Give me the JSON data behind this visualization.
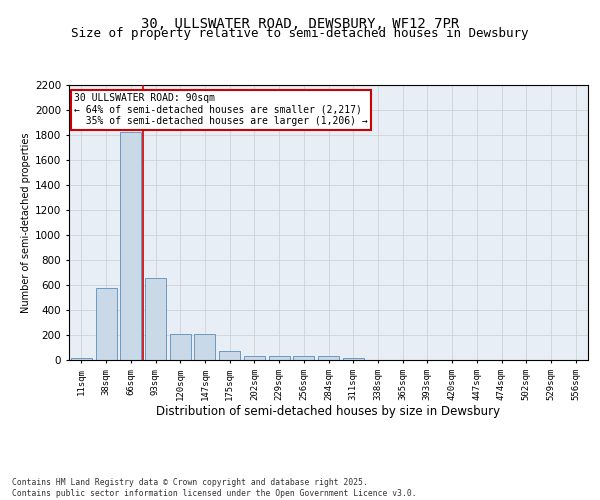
{
  "title1": "30, ULLSWATER ROAD, DEWSBURY, WF12 7PR",
  "title2": "Size of property relative to semi-detached houses in Dewsbury",
  "xlabel": "Distribution of semi-detached houses by size in Dewsbury",
  "ylabel": "Number of semi-detached properties",
  "categories": [
    "11sqm",
    "38sqm",
    "66sqm",
    "93sqm",
    "120sqm",
    "147sqm",
    "175sqm",
    "202sqm",
    "229sqm",
    "256sqm",
    "284sqm",
    "311sqm",
    "338sqm",
    "365sqm",
    "393sqm",
    "420sqm",
    "447sqm",
    "474sqm",
    "502sqm",
    "529sqm",
    "556sqm"
  ],
  "values": [
    20,
    580,
    1820,
    660,
    210,
    210,
    70,
    35,
    30,
    30,
    30,
    15,
    0,
    0,
    0,
    0,
    0,
    0,
    0,
    0,
    0
  ],
  "bar_color": "#c9d9e8",
  "bar_edge_color": "#5b8db8",
  "grid_color": "#cccccc",
  "vline_color": "#cc0000",
  "annotation_line1": "30 ULLSWATER ROAD: 90sqm",
  "annotation_line2": "← 64% of semi-detached houses are smaller (2,217)",
  "annotation_line3": "  35% of semi-detached houses are larger (1,206) →",
  "annotation_box_color": "#cc0000",
  "ylim": [
    0,
    2200
  ],
  "yticks": [
    0,
    200,
    400,
    600,
    800,
    1000,
    1200,
    1400,
    1600,
    1800,
    2000,
    2200
  ],
  "footer": "Contains HM Land Registry data © Crown copyright and database right 2025.\nContains public sector information licensed under the Open Government Licence v3.0.",
  "bg_color": "#e8eef5",
  "title1_fontsize": 10,
  "title2_fontsize": 9
}
